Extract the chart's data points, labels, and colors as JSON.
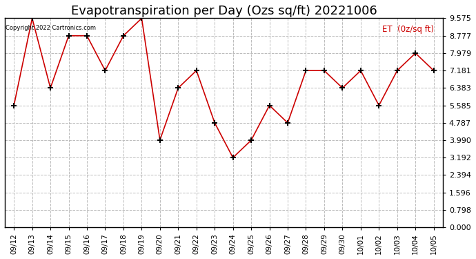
{
  "title": "Evapotranspiration per Day (Ozs sq/ft) 20221006",
  "legend_label": "ET  (0z/sq ft)",
  "copyright_text": "Copyright 2022 Cartronics.com",
  "dates": [
    "09/12",
    "09/13",
    "09/14",
    "09/15",
    "09/16",
    "09/17",
    "09/18",
    "09/19",
    "09/20",
    "09/21",
    "09/22",
    "09/23",
    "09/24",
    "09/25",
    "09/26",
    "09/27",
    "09/28",
    "09/29",
    "09/30",
    "10/01",
    "10/02",
    "10/03",
    "10/04",
    "10/05"
  ],
  "values": [
    5.585,
    9.575,
    6.383,
    8.777,
    8.777,
    7.181,
    8.777,
    9.575,
    4.0,
    6.383,
    7.181,
    4.787,
    3.192,
    3.99,
    5.585,
    4.787,
    7.181,
    7.181,
    6.383,
    7.181,
    5.585,
    7.181,
    7.979,
    7.181
  ],
  "ylim": [
    0.0,
    9.575
  ],
  "yticks": [
    0.0,
    0.798,
    1.596,
    2.394,
    3.192,
    3.99,
    4.787,
    5.585,
    6.383,
    7.181,
    7.979,
    8.777,
    9.575
  ],
  "line_color": "#cc0000",
  "marker_color": "#000000",
  "grid_color": "#bbbbbb",
  "bg_color": "#ffffff",
  "title_fontsize": 13,
  "legend_color": "#cc0000",
  "copyright_color": "#000000"
}
